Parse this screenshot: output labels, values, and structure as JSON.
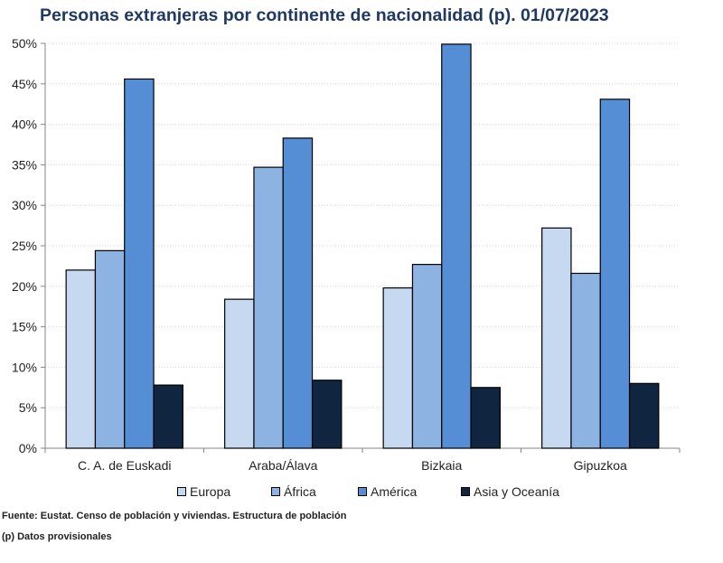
{
  "chart_data": {
    "type": "bar",
    "title": "Personas extranjeras por continente de nacionalidad (p). 01/07/2023",
    "categories": [
      "C. A. de Euskadi",
      "Araba/Álava",
      "Bizkaia",
      "Gipuzkoa"
    ],
    "series": [
      {
        "name": "Europa",
        "color": "#c6d9f1",
        "values": [
          22.0,
          18.4,
          19.8,
          27.2
        ]
      },
      {
        "name": "África",
        "color": "#8db3e2",
        "values": [
          24.4,
          34.7,
          22.7,
          21.6
        ]
      },
      {
        "name": "América",
        "color": "#558ed5",
        "values": [
          45.6,
          38.3,
          49.9,
          43.1
        ]
      },
      {
        "name": "Asia y Oceanía",
        "color": "#10253f",
        "values": [
          7.8,
          8.4,
          7.5,
          8.0
        ]
      }
    ],
    "ylim": [
      0,
      50
    ],
    "yticks": [
      "0%",
      "5%",
      "10%",
      "15%",
      "20%",
      "25%",
      "30%",
      "35%",
      "40%",
      "45%",
      "50%"
    ],
    "grid": true,
    "legend_position": "bottom"
  },
  "footer": {
    "source": "Fuente: Eustat. Censo de población y viviendas. Estructura de población",
    "note": "(p) Datos provisionales"
  }
}
